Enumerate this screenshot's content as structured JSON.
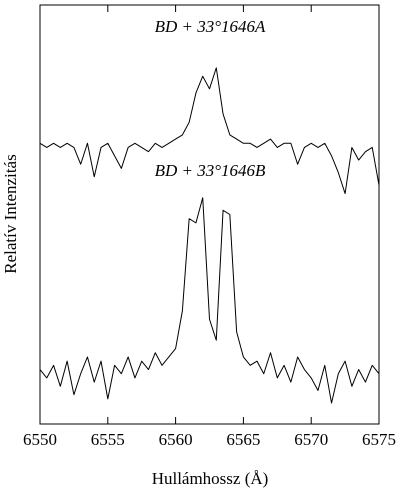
{
  "chart_data": {
    "type": "line",
    "xlabel": "Hullámhossz (Å)",
    "ylabel": "Relatív Intenzitás",
    "x": [
      6550,
      6550.5,
      6551,
      6551.5,
      6552,
      6552.5,
      6553,
      6553.5,
      6554,
      6554.5,
      6555,
      6555.5,
      6556,
      6556.5,
      6557,
      6557.5,
      6558,
      6558.5,
      6559,
      6559.5,
      6560,
      6560.5,
      6561,
      6561.5,
      6562,
      6562.5,
      6563,
      6563.5,
      6564,
      6564.5,
      6565,
      6565.5,
      6566,
      6566.5,
      6567,
      6567.5,
      6568,
      6568.5,
      6569,
      6569.5,
      6570,
      6570.5,
      6571,
      6571.5,
      6572,
      6572.5,
      6573,
      6573.5,
      6574,
      6574.5,
      6575
    ],
    "series": [
      {
        "name": "BD + 33°1646A",
        "color": "#000000",
        "values": [
          0.67,
          0.66,
          0.67,
          0.66,
          0.67,
          0.66,
          0.62,
          0.67,
          0.59,
          0.66,
          0.67,
          0.64,
          0.61,
          0.66,
          0.67,
          0.66,
          0.65,
          0.67,
          0.66,
          0.67,
          0.68,
          0.69,
          0.72,
          0.79,
          0.83,
          0.8,
          0.85,
          0.74,
          0.69,
          0.68,
          0.67,
          0.67,
          0.66,
          0.67,
          0.68,
          0.66,
          0.67,
          0.67,
          0.62,
          0.66,
          0.67,
          0.66,
          0.67,
          0.64,
          0.6,
          0.55,
          0.66,
          0.63,
          0.65,
          0.66,
          0.57
        ]
      },
      {
        "name": "BD + 33°1646B",
        "color": "#000000",
        "values": [
          0.13,
          0.11,
          0.14,
          0.09,
          0.15,
          0.07,
          0.12,
          0.16,
          0.1,
          0.15,
          0.06,
          0.14,
          0.12,
          0.16,
          0.11,
          0.15,
          0.13,
          0.17,
          0.14,
          0.16,
          0.18,
          0.27,
          0.49,
          0.48,
          0.54,
          0.25,
          0.2,
          0.51,
          0.5,
          0.22,
          0.16,
          0.14,
          0.15,
          0.12,
          0.17,
          0.11,
          0.14,
          0.1,
          0.16,
          0.13,
          0.11,
          0.08,
          0.14,
          0.05,
          0.12,
          0.15,
          0.09,
          0.13,
          0.1,
          0.14,
          0.12
        ]
      }
    ],
    "xlim": [
      6550,
      6575
    ],
    "xticks": [
      6550,
      6555,
      6560,
      6565,
      6570,
      6575
    ],
    "ylim": [
      0,
      1
    ],
    "grid": false
  }
}
